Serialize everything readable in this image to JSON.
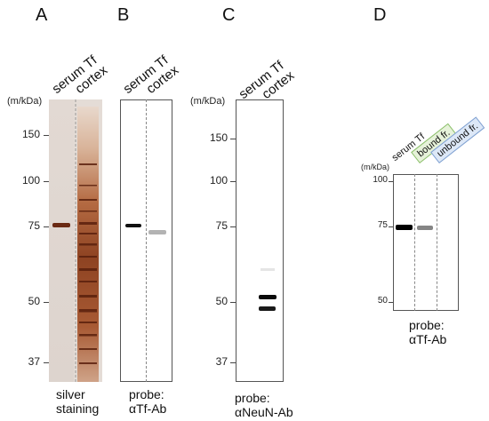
{
  "panels": {
    "a": {
      "letter": "A",
      "lanes": [
        "serum Tf",
        "cortex"
      ],
      "unit": "(m/kDa)",
      "markers": [
        "150",
        "100",
        "75",
        "50",
        "37"
      ],
      "caption": [
        "silver",
        "staining"
      ]
    },
    "b": {
      "letter": "B",
      "lanes": [
        "serum Tf",
        "cortex"
      ],
      "caption": [
        "probe:",
        "αTf-Ab"
      ]
    },
    "c": {
      "letter": "C",
      "lanes": [
        "serum Tf",
        "cortex"
      ],
      "unit": "(m/kDa)",
      "markers": [
        "150",
        "100",
        "75",
        "50",
        "37"
      ],
      "caption": [
        "probe:",
        "αNeuN-Ab"
      ]
    },
    "d": {
      "letter": "D",
      "lanes": [
        "serum Tf",
        "bound fr.",
        "unbound fr."
      ],
      "unit": "(m/kDa)",
      "markers": [
        "100",
        "75",
        "50"
      ],
      "caption": [
        "probe:",
        "αTf-Ab"
      ]
    }
  },
  "colors": {
    "silver_gel_bg": "#e4dcd6",
    "silver_band": "#6b2a14",
    "bound_tag": "#e6f2d9",
    "bound_border": "#8bbf6a",
    "unbound_tag": "#dde8f7",
    "unbound_border": "#7d9fd0"
  }
}
